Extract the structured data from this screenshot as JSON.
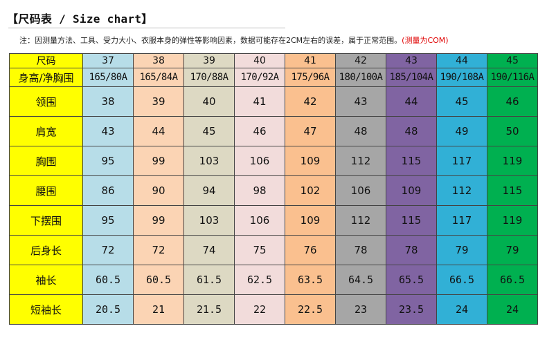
{
  "title": "【尺码表 / Size chart】",
  "note": {
    "text": "注：因测量方法、工具、受力大小、衣服本身的弹性等影响因素，数据可能存在2CM左右的误差，属于正常范围。",
    "red_text": "(测量为COM)"
  },
  "colors": {
    "label_bg": "#ffff00",
    "note_red": "#e00000",
    "columns": [
      "#b7dde8",
      "#fbd4b4",
      "#ddd9c3",
      "#f2dcdb",
      "#fac08f",
      "#a6a6a6",
      "#8064a2",
      "#31b0d6",
      "#00b050"
    ]
  },
  "table": {
    "rows": [
      {
        "label": "尺码",
        "values": [
          "37",
          "38",
          "39",
          "40",
          "41",
          "42",
          "43",
          "44",
          "45"
        ]
      },
      {
        "label": "身高/净胸围",
        "values": [
          "165/80A",
          "165/84A",
          "170/88A",
          "170/92A",
          "175/96A",
          "180/100A",
          "185/104A",
          "190/108A",
          "190/116A"
        ]
      },
      {
        "label": "领围",
        "values": [
          "38",
          "39",
          "40",
          "41",
          "42",
          "43",
          "44",
          "45",
          "46"
        ]
      },
      {
        "label": "肩宽",
        "values": [
          "43",
          "44",
          "45",
          "46",
          "47",
          "48",
          "48",
          "49",
          "50"
        ]
      },
      {
        "label": "胸围",
        "values": [
          "95",
          "99",
          "103",
          "106",
          "109",
          "112",
          "115",
          "117",
          "119"
        ]
      },
      {
        "label": "腰围",
        "values": [
          "86",
          "90",
          "94",
          "98",
          "102",
          "106",
          "109",
          "112",
          "115"
        ]
      },
      {
        "label": "下摆围",
        "values": [
          "95",
          "99",
          "103",
          "106",
          "109",
          "112",
          "115",
          "117",
          "119"
        ]
      },
      {
        "label": "后身长",
        "values": [
          "72",
          "72",
          "74",
          "75",
          "76",
          "78",
          "78",
          "79",
          "79"
        ]
      },
      {
        "label": "袖长",
        "values": [
          "60.5",
          "60.5",
          "61.5",
          "62.5",
          "63.5",
          "64.5",
          "65.5",
          "66.5",
          "66.5"
        ]
      },
      {
        "label": "短袖长",
        "values": [
          "20.5",
          "21",
          "21.5",
          "22",
          "22.5",
          "23",
          "23.5",
          "24",
          "24"
        ]
      }
    ]
  }
}
